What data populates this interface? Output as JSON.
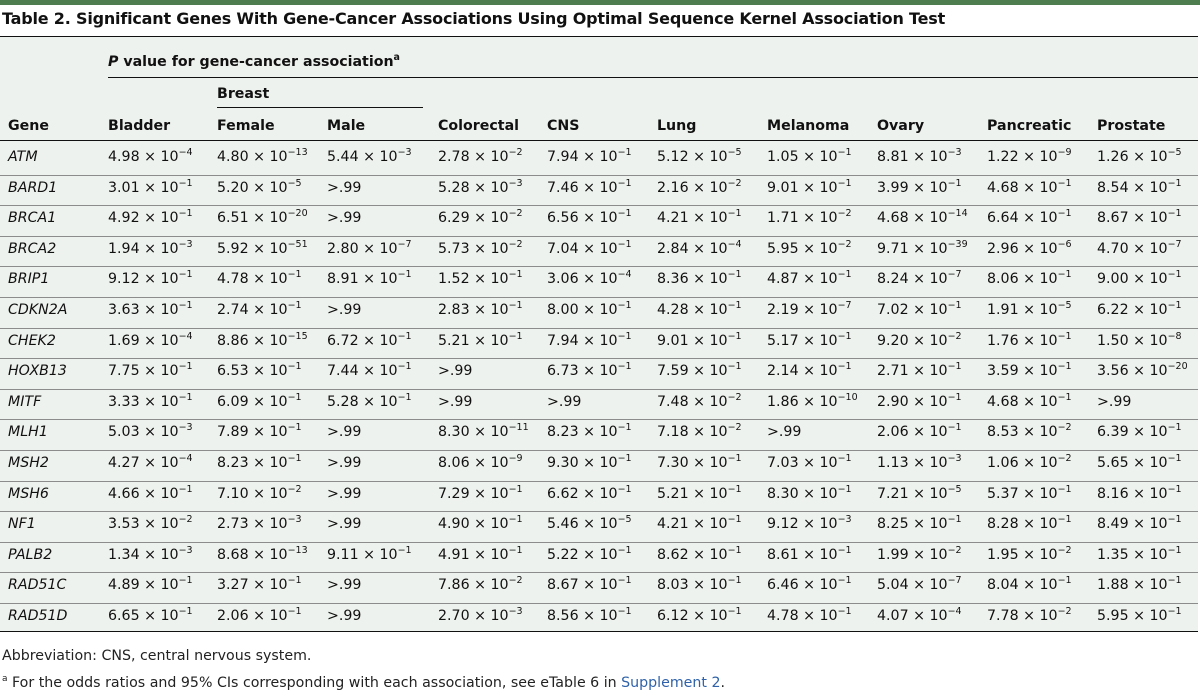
{
  "title": "Table 2. Significant Genes With Gene-Cancer Associations Using Optimal Sequence Kernel Association Test",
  "header": {
    "pvalue_label_italic": "P",
    "pvalue_label_rest": " value for gene-cancer association",
    "pvalue_note_marker": "a",
    "breast_group": "Breast",
    "columns": [
      "Gene",
      "Bladder",
      "Female",
      "Male",
      "Colorectal",
      "CNS",
      "Lung",
      "Melanoma",
      "Ovary",
      "Pancreatic",
      "Prostate"
    ]
  },
  "rows": [
    {
      "gene": "ATM",
      "values": [
        [
          "4.98",
          "-4"
        ],
        [
          "4.80",
          "-13"
        ],
        [
          "5.44",
          "-3"
        ],
        [
          "2.78",
          "-2"
        ],
        [
          "7.94",
          "-1"
        ],
        [
          "5.12",
          "-5"
        ],
        [
          "1.05",
          "-1"
        ],
        [
          "8.81",
          "-3"
        ],
        [
          "1.22",
          "-9"
        ],
        [
          "1.26",
          "-5"
        ]
      ]
    },
    {
      "gene": "BARD1",
      "values": [
        [
          "3.01",
          "-1"
        ],
        [
          "5.20",
          "-5"
        ],
        [
          ">.99",
          ""
        ],
        [
          "5.28",
          "-3"
        ],
        [
          "7.46",
          "-1"
        ],
        [
          "2.16",
          "-2"
        ],
        [
          "9.01",
          "-1"
        ],
        [
          "3.99",
          "-1"
        ],
        [
          "4.68",
          "-1"
        ],
        [
          "8.54",
          "-1"
        ]
      ]
    },
    {
      "gene": "BRCA1",
      "values": [
        [
          "4.92",
          "-1"
        ],
        [
          "6.51",
          "-20"
        ],
        [
          ">.99",
          ""
        ],
        [
          "6.29",
          "-2"
        ],
        [
          "6.56",
          "-1"
        ],
        [
          "4.21",
          "-1"
        ],
        [
          "1.71",
          "-2"
        ],
        [
          "4.68",
          "-14"
        ],
        [
          "6.64",
          "-1"
        ],
        [
          "8.67",
          "-1"
        ]
      ]
    },
    {
      "gene": "BRCA2",
      "values": [
        [
          "1.94",
          "-3"
        ],
        [
          "5.92",
          "-51"
        ],
        [
          "2.80",
          "-7"
        ],
        [
          "5.73",
          "-2"
        ],
        [
          "7.04",
          "-1"
        ],
        [
          "2.84",
          "-4"
        ],
        [
          "5.95",
          "-2"
        ],
        [
          "9.71",
          "-39"
        ],
        [
          "2.96",
          "-6"
        ],
        [
          "4.70",
          "-7"
        ]
      ]
    },
    {
      "gene": "BRIP1",
      "values": [
        [
          "9.12",
          "-1"
        ],
        [
          "4.78",
          "-1"
        ],
        [
          "8.91",
          "-1"
        ],
        [
          "1.52",
          "-1"
        ],
        [
          "3.06",
          "-4"
        ],
        [
          "8.36",
          "-1"
        ],
        [
          "4.87",
          "-1"
        ],
        [
          "8.24",
          "-7"
        ],
        [
          "8.06",
          "-1"
        ],
        [
          "9.00",
          "-1"
        ]
      ]
    },
    {
      "gene": "CDKN2A",
      "values": [
        [
          "3.63",
          "-1"
        ],
        [
          "2.74",
          "-1"
        ],
        [
          ">.99",
          ""
        ],
        [
          "2.83",
          "-1"
        ],
        [
          "8.00",
          "-1"
        ],
        [
          "4.28",
          "-1"
        ],
        [
          "2.19",
          "-7"
        ],
        [
          "7.02",
          "-1"
        ],
        [
          "1.91",
          "-5"
        ],
        [
          "6.22",
          "-1"
        ]
      ]
    },
    {
      "gene": "CHEK2",
      "values": [
        [
          "1.69",
          "-4"
        ],
        [
          "8.86",
          "-15"
        ],
        [
          "6.72",
          "-1"
        ],
        [
          "5.21",
          "-1"
        ],
        [
          "7.94",
          "-1"
        ],
        [
          "9.01",
          "-1"
        ],
        [
          "5.17",
          "-1"
        ],
        [
          "9.20",
          "-2"
        ],
        [
          "1.76",
          "-1"
        ],
        [
          "1.50",
          "-8"
        ]
      ]
    },
    {
      "gene": "HOXB13",
      "values": [
        [
          "7.75",
          "-1"
        ],
        [
          "6.53",
          "-1"
        ],
        [
          "7.44",
          "-1"
        ],
        [
          ">.99",
          ""
        ],
        [
          "6.73",
          "-1"
        ],
        [
          "7.59",
          "-1"
        ],
        [
          "2.14",
          "-1"
        ],
        [
          "2.71",
          "-1"
        ],
        [
          "3.59",
          "-1"
        ],
        [
          "3.56",
          "-20"
        ]
      ]
    },
    {
      "gene": "MITF",
      "values": [
        [
          "3.33",
          "-1"
        ],
        [
          "6.09",
          "-1"
        ],
        [
          "5.28",
          "-1"
        ],
        [
          ">.99",
          ""
        ],
        [
          ">.99",
          ""
        ],
        [
          "7.48",
          "-2"
        ],
        [
          "1.86",
          "-10"
        ],
        [
          "2.90",
          "-1"
        ],
        [
          "4.68",
          "-1"
        ],
        [
          ">.99",
          ""
        ]
      ]
    },
    {
      "gene": "MLH1",
      "values": [
        [
          "5.03",
          "-3"
        ],
        [
          "7.89",
          "-1"
        ],
        [
          ">.99",
          ""
        ],
        [
          "8.30",
          "-11"
        ],
        [
          "8.23",
          "-1"
        ],
        [
          "7.18",
          "-2"
        ],
        [
          ">.99",
          ""
        ],
        [
          "2.06",
          "-1"
        ],
        [
          "8.53",
          "-2"
        ],
        [
          "6.39",
          "-1"
        ]
      ]
    },
    {
      "gene": "MSH2",
      "values": [
        [
          "4.27",
          "-4"
        ],
        [
          "8.23",
          "-1"
        ],
        [
          ">.99",
          ""
        ],
        [
          "8.06",
          "-9"
        ],
        [
          "9.30",
          "-1"
        ],
        [
          "7.30",
          "-1"
        ],
        [
          "7.03",
          "-1"
        ],
        [
          "1.13",
          "-3"
        ],
        [
          "1.06",
          "-2"
        ],
        [
          "5.65",
          "-1"
        ]
      ]
    },
    {
      "gene": "MSH6",
      "values": [
        [
          "4.66",
          "-1"
        ],
        [
          "7.10",
          "-2"
        ],
        [
          ">.99",
          ""
        ],
        [
          "7.29",
          "-1"
        ],
        [
          "6.62",
          "-1"
        ],
        [
          "5.21",
          "-1"
        ],
        [
          "8.30",
          "-1"
        ],
        [
          "7.21",
          "-5"
        ],
        [
          "5.37",
          "-1"
        ],
        [
          "8.16",
          "-1"
        ]
      ]
    },
    {
      "gene": "NF1",
      "values": [
        [
          "3.53",
          "-2"
        ],
        [
          "2.73",
          "-3"
        ],
        [
          ">.99",
          ""
        ],
        [
          "4.90",
          "-1"
        ],
        [
          "5.46",
          "-5"
        ],
        [
          "4.21",
          "-1"
        ],
        [
          "9.12",
          "-3"
        ],
        [
          "8.25",
          "-1"
        ],
        [
          "8.28",
          "-1"
        ],
        [
          "8.49",
          "-1"
        ]
      ]
    },
    {
      "gene": "PALB2",
      "values": [
        [
          "1.34",
          "-3"
        ],
        [
          "8.68",
          "-13"
        ],
        [
          "9.11",
          "-1"
        ],
        [
          "4.91",
          "-1"
        ],
        [
          "5.22",
          "-1"
        ],
        [
          "8.62",
          "-1"
        ],
        [
          "8.61",
          "-1"
        ],
        [
          "1.99",
          "-2"
        ],
        [
          "1.95",
          "-2"
        ],
        [
          "1.35",
          "-1"
        ]
      ]
    },
    {
      "gene": "RAD51C",
      "values": [
        [
          "4.89",
          "-1"
        ],
        [
          "3.27",
          "-1"
        ],
        [
          ">.99",
          ""
        ],
        [
          "7.86",
          "-2"
        ],
        [
          "8.67",
          "-1"
        ],
        [
          "8.03",
          "-1"
        ],
        [
          "6.46",
          "-1"
        ],
        [
          "5.04",
          "-7"
        ],
        [
          "8.04",
          "-1"
        ],
        [
          "1.88",
          "-1"
        ]
      ]
    },
    {
      "gene": "RAD51D",
      "values": [
        [
          "6.65",
          "-1"
        ],
        [
          "2.06",
          "-1"
        ],
        [
          ">.99",
          ""
        ],
        [
          "2.70",
          "-3"
        ],
        [
          "8.56",
          "-1"
        ],
        [
          "6.12",
          "-1"
        ],
        [
          "4.78",
          "-1"
        ],
        [
          "4.07",
          "-4"
        ],
        [
          "7.78",
          "-2"
        ],
        [
          "5.95",
          "-1"
        ]
      ]
    }
  ],
  "times_base": " × 10",
  "footnotes": {
    "abbreviation": "Abbreviation: CNS, central nervous system.",
    "note_marker": "a",
    "note_text": " For the odds ratios and 95% CIs corresponding with each association, see eTable 6 in ",
    "note_link": "Supplement 2",
    "note_end": "."
  },
  "colors": {
    "accent_rule": "#4e7d4f",
    "table_background": "#eef2ee",
    "link": "#2f62a8"
  }
}
